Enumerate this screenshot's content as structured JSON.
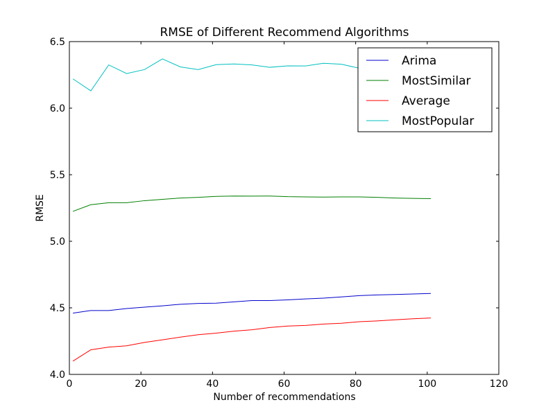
{
  "chart_data": {
    "type": "line",
    "title": "RMSE of Different Recommend Algorithms",
    "xlabel": "Number of recommendations",
    "ylabel": "RMSE",
    "xlim": [
      0,
      120
    ],
    "ylim": [
      4.0,
      6.5
    ],
    "xticks": [
      "0",
      "20",
      "40",
      "60",
      "80",
      "100",
      "120"
    ],
    "yticks": [
      "4.0",
      "4.5",
      "5.0",
      "5.5",
      "6.0",
      "6.5"
    ],
    "grid": false,
    "legend_position": "top-right",
    "x": [
      1,
      6,
      11,
      16,
      21,
      26,
      31,
      36,
      41,
      46,
      51,
      56,
      61,
      66,
      71,
      76,
      81,
      86,
      91,
      96,
      101
    ],
    "series": [
      {
        "name": "Arima",
        "color": "#0000cc",
        "values": [
          4.46,
          4.48,
          4.48,
          4.495,
          4.505,
          4.515,
          4.527,
          4.533,
          4.535,
          4.545,
          4.555,
          4.555,
          4.56,
          4.567,
          4.573,
          4.582,
          4.592,
          4.597,
          4.6,
          4.604,
          4.608
        ]
      },
      {
        "name": "MostSimilar",
        "color": "#007f00",
        "values": [
          5.225,
          5.275,
          5.29,
          5.29,
          5.305,
          5.315,
          5.325,
          5.33,
          5.337,
          5.34,
          5.339,
          5.34,
          5.335,
          5.333,
          5.332,
          5.333,
          5.333,
          5.33,
          5.325,
          5.322,
          5.32
        ]
      },
      {
        "name": "Average",
        "color": "#ff0000",
        "values": [
          4.1,
          4.185,
          4.205,
          4.215,
          4.24,
          4.26,
          4.28,
          4.298,
          4.31,
          4.325,
          4.335,
          4.352,
          4.363,
          4.368,
          4.378,
          4.384,
          4.396,
          4.402,
          4.41,
          4.418,
          4.424
        ]
      },
      {
        "name": "MostPopular",
        "color": "#00bfbf",
        "values": [
          6.22,
          6.13,
          6.325,
          6.26,
          6.29,
          6.37,
          6.31,
          6.29,
          6.327,
          6.332,
          6.325,
          6.307,
          6.318,
          6.317,
          6.337,
          6.33,
          6.3,
          6.29,
          6.315,
          6.33,
          6.33
        ]
      }
    ]
  }
}
